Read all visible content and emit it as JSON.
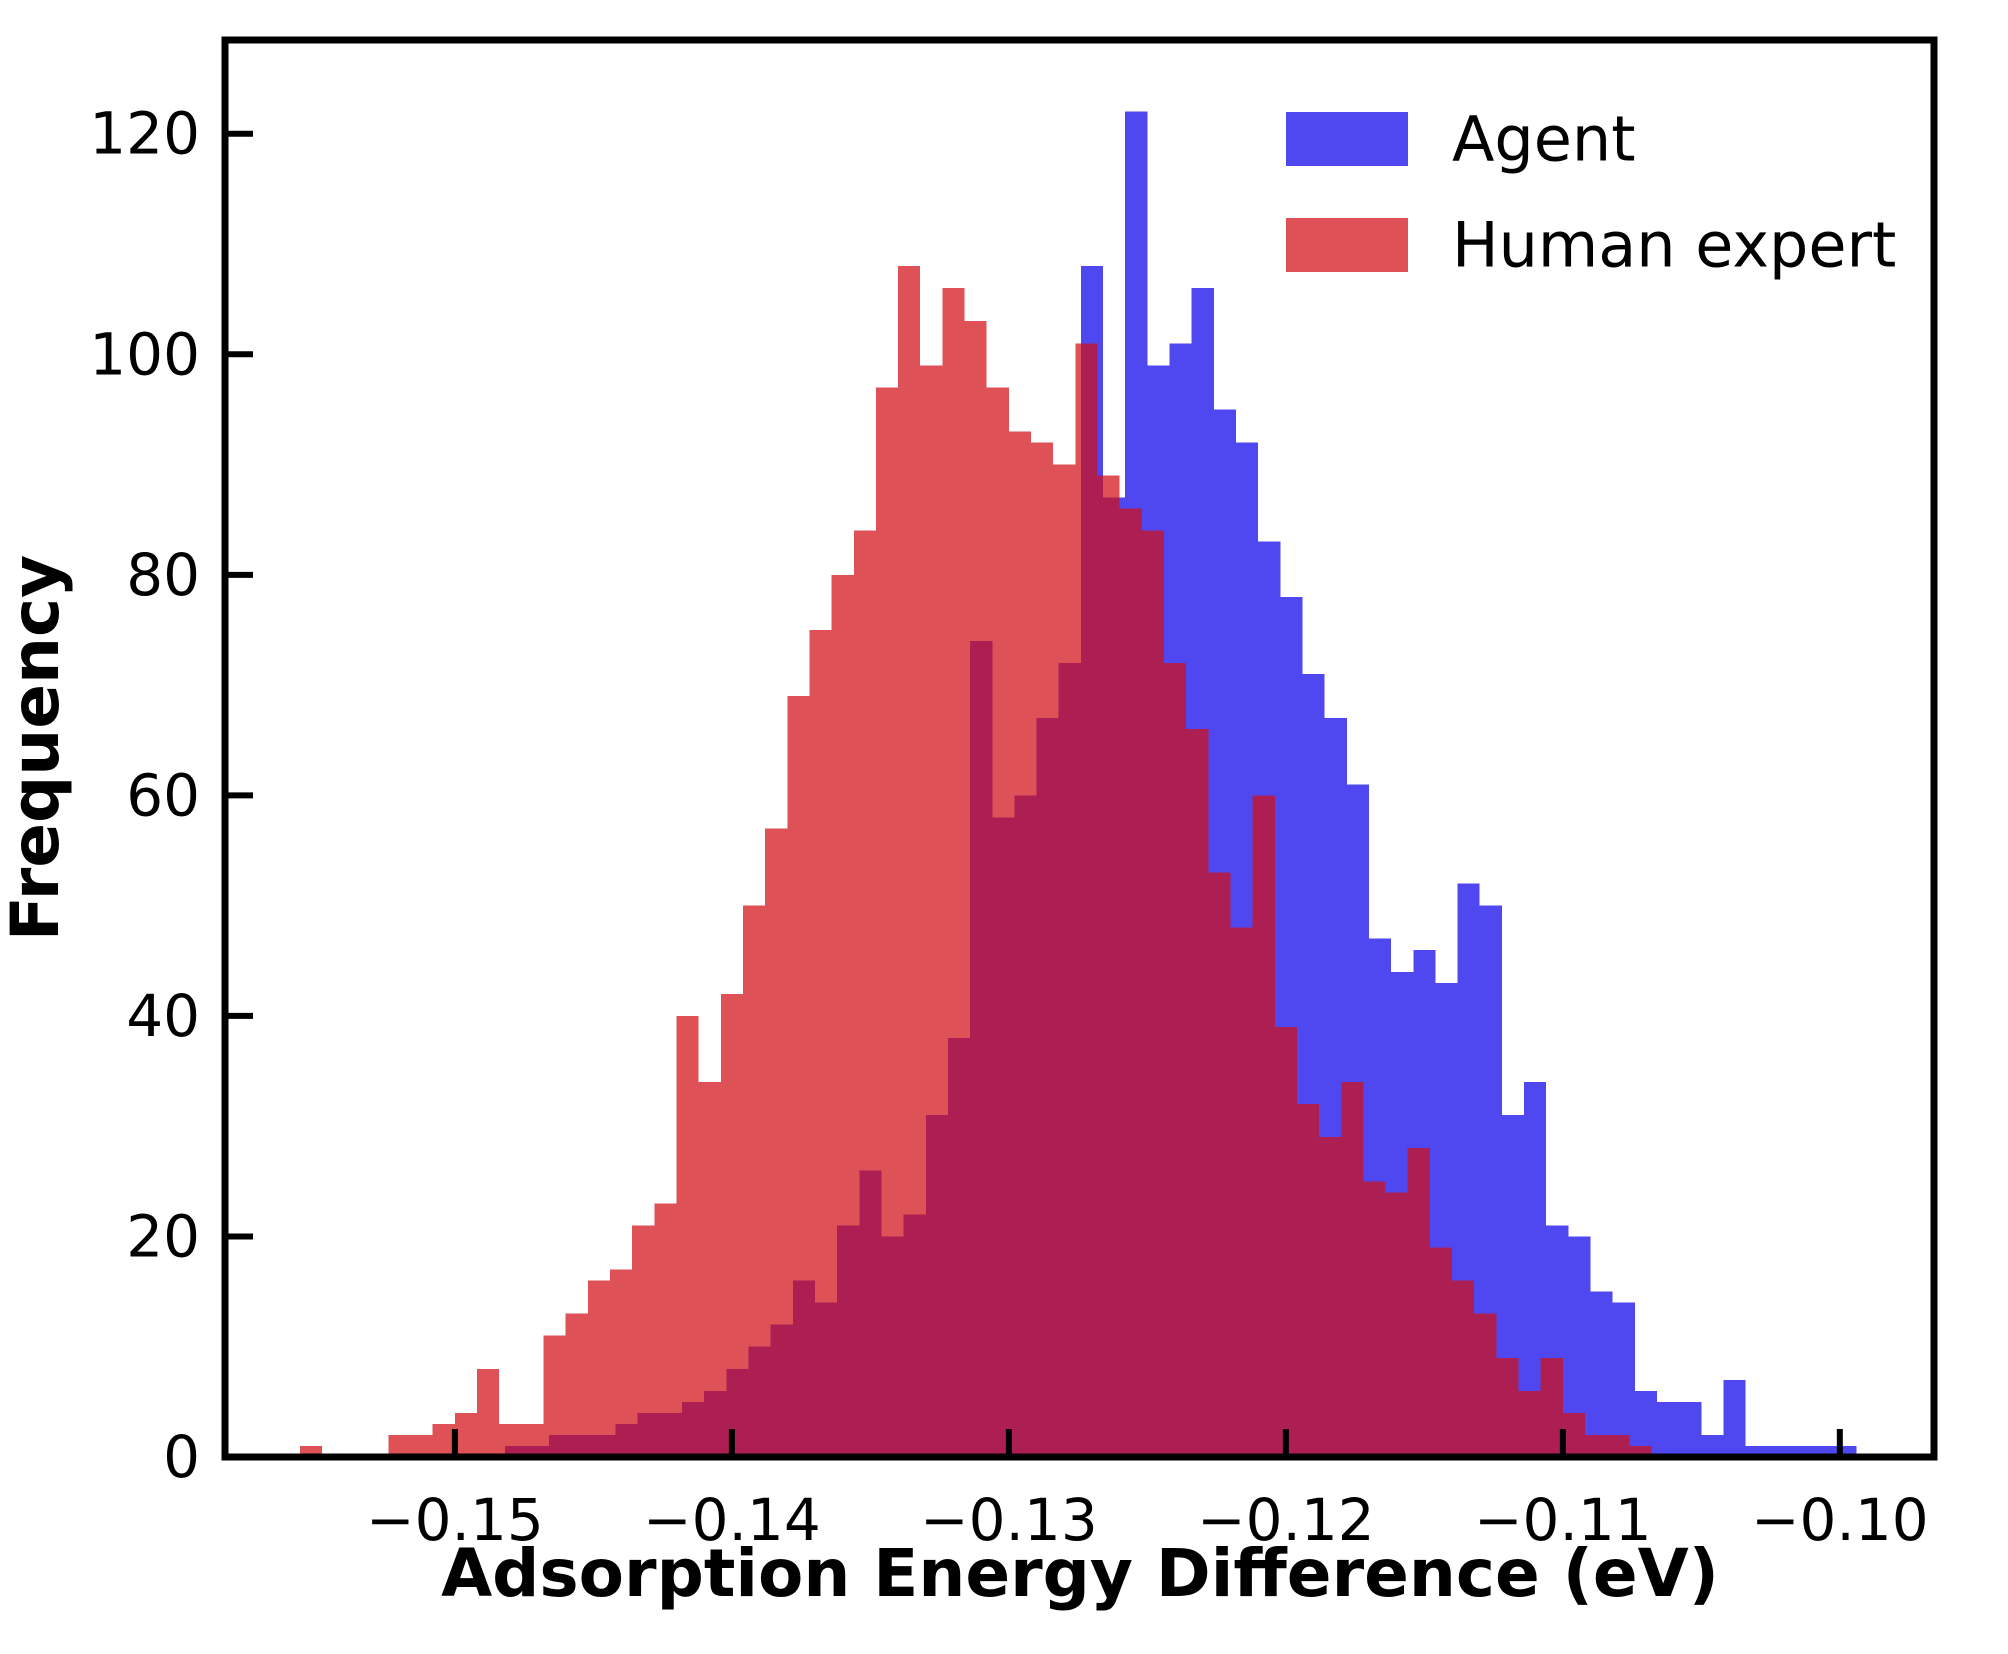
{
  "figure_title": "",
  "chart_data": {
    "type": "bar",
    "subtype": "overlaid-histograms",
    "title": "",
    "xlabel": "Adsorption Energy Difference (eV)",
    "ylabel": "Frequency",
    "xlim": [
      -0.1583,
      -0.0966
    ],
    "ylim": [
      0,
      128.5
    ],
    "grid": false,
    "legend_position": "upper right",
    "x_tick_values": [
      -0.15,
      -0.14,
      -0.13,
      -0.12,
      -0.11,
      -0.1
    ],
    "x_tick_labels": [
      "−0.15",
      "−0.14",
      "−0.13",
      "−0.12",
      "−0.11",
      "−0.10"
    ],
    "y_tick_values": [
      0,
      20,
      40,
      60,
      80,
      100,
      120
    ],
    "y_tick_labels": [
      "0",
      "20",
      "40",
      "60",
      "80",
      "100",
      "120"
    ],
    "axis_color": "#000000",
    "series": [
      {
        "name": "Agent",
        "color": "#4F48F0",
        "fill_opacity": 1.0,
        "bin_start": -0.1482,
        "bin_width": 0.0008,
        "counts": [
          1,
          1,
          2,
          2,
          2,
          3,
          4,
          4,
          5,
          6,
          8,
          10,
          12,
          16,
          14,
          21,
          26,
          20,
          22,
          31,
          38,
          74,
          58,
          60,
          67,
          72,
          108,
          87,
          122,
          99,
          101,
          106,
          95,
          92,
          83,
          78,
          71,
          67,
          61,
          47,
          44,
          46,
          43,
          52,
          50,
          31,
          34,
          21,
          20,
          15,
          14,
          6,
          5,
          5,
          2,
          7,
          1,
          1,
          1,
          1,
          1
        ]
      },
      {
        "name": "Human expert",
        "color": "#D01018",
        "fill_opacity": 0.73,
        "bin_start": -0.1556,
        "bin_width": 0.0008,
        "counts": [
          1,
          0,
          0,
          0,
          2,
          2,
          3,
          4,
          8,
          3,
          3,
          11,
          13,
          16,
          17,
          21,
          23,
          40,
          34,
          42,
          50,
          57,
          69,
          75,
          80,
          84,
          97,
          108,
          99,
          106,
          103,
          97,
          93,
          92,
          90,
          101,
          89,
          86,
          84,
          72,
          66,
          53,
          48,
          60,
          39,
          32,
          29,
          34,
          25,
          24,
          28,
          19,
          16,
          13,
          9,
          6,
          9,
          4,
          2,
          2,
          1,
          0
        ]
      }
    ]
  }
}
